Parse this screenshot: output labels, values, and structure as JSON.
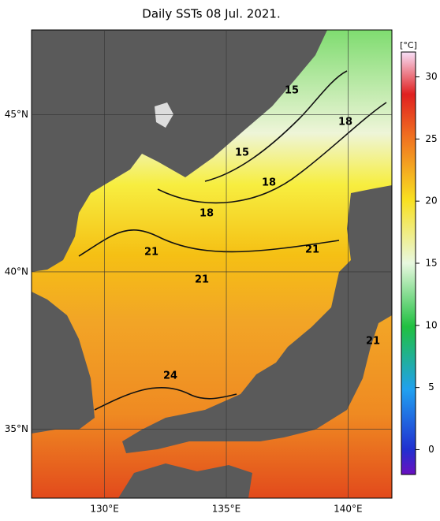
{
  "title": "Daily SSTs 08 Jul. 2021.",
  "map": {
    "xlim": [
      127,
      141.8
    ],
    "ylim": [
      32.8,
      47.7
    ],
    "lon_ticks": [
      {
        "value": 130,
        "label": "130°E"
      },
      {
        "value": 135,
        "label": "135°E"
      },
      {
        "value": 140,
        "label": "140°E"
      }
    ],
    "lat_ticks": [
      {
        "value": 45,
        "label": "45°N"
      },
      {
        "value": 40,
        "label": "40°N"
      },
      {
        "value": 35,
        "label": "35°N"
      }
    ],
    "contour_labels": [
      15,
      18,
      15,
      18,
      18,
      21,
      21,
      21,
      21,
      24
    ]
  },
  "colorbar": {
    "unit": "[°C]",
    "range": [
      -2,
      32
    ],
    "ticks": [
      0,
      5,
      10,
      15,
      20,
      25,
      30
    ]
  }
}
